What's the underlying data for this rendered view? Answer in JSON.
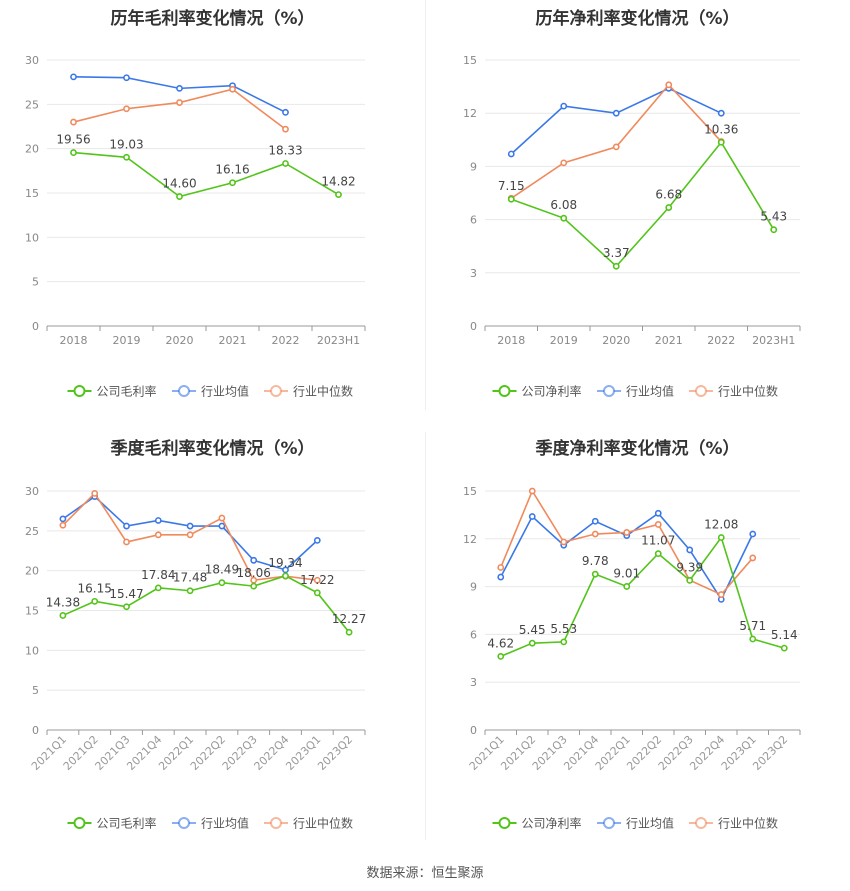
{
  "source": "数据来源：恒生聚源",
  "colors": {
    "company": "#52c41a",
    "avg": "#3b78e7",
    "median": "#f08a5d",
    "grid": "#e8e8e8",
    "axis": "#999999"
  },
  "chart_data": [
    {
      "id": "annual-gross",
      "type": "line",
      "title": "历年毛利率变化情况（%）",
      "categories": [
        "2018",
        "2019",
        "2020",
        "2021",
        "2022",
        "2023H1"
      ],
      "ylim": [
        0,
        30
      ],
      "yticks": [
        0,
        5,
        10,
        15,
        20,
        25,
        30
      ],
      "legend": [
        "公司毛利率",
        "行业均值",
        "行业中位数"
      ],
      "legend_position": "bottom",
      "series": [
        {
          "name": "公司毛利率",
          "key": "company",
          "labels": true,
          "values": [
            19.56,
            19.03,
            14.6,
            16.16,
            18.33,
            14.82
          ],
          "display": [
            "19.56",
            "19.03",
            "14.60",
            "16.16",
            "18.33",
            "14.82"
          ]
        },
        {
          "name": "行业均值",
          "key": "avg",
          "values": [
            28.1,
            28.0,
            26.8,
            27.1,
            24.1,
            null
          ]
        },
        {
          "name": "行业中位数",
          "key": "median",
          "values": [
            23.0,
            24.5,
            25.2,
            26.7,
            22.2,
            null
          ]
        }
      ]
    },
    {
      "id": "annual-net",
      "type": "line",
      "title": "历年净利率变化情况（%）",
      "categories": [
        "2018",
        "2019",
        "2020",
        "2021",
        "2022",
        "2023H1"
      ],
      "ylim": [
        0,
        15
      ],
      "yticks": [
        0,
        3,
        6,
        9,
        12,
        15
      ],
      "legend": [
        "公司净利率",
        "行业均值",
        "行业中位数"
      ],
      "legend_position": "bottom",
      "series": [
        {
          "name": "公司净利率",
          "key": "company",
          "labels": true,
          "values": [
            7.15,
            6.08,
            3.37,
            6.68,
            10.36,
            5.43
          ],
          "display": [
            "7.15",
            "6.08",
            "3.37",
            "6.68",
            "10.36",
            "5.43"
          ]
        },
        {
          "name": "行业均值",
          "key": "avg",
          "values": [
            9.7,
            12.4,
            12.0,
            13.4,
            12.0,
            null
          ]
        },
        {
          "name": "行业中位数",
          "key": "median",
          "values": [
            7.2,
            9.2,
            10.1,
            13.6,
            10.4,
            null
          ]
        }
      ]
    },
    {
      "id": "quarterly-gross",
      "type": "line",
      "title": "季度毛利率变化情况（%）",
      "categories": [
        "2021Q1",
        "2021Q2",
        "2021Q3",
        "2021Q4",
        "2022Q1",
        "2022Q2",
        "2022Q3",
        "2022Q4",
        "2023Q1",
        "2023Q2"
      ],
      "ylim": [
        0,
        30
      ],
      "yticks": [
        0,
        5,
        10,
        15,
        20,
        25,
        30
      ],
      "legend": [
        "公司毛利率",
        "行业均值",
        "行业中位数"
      ],
      "legend_position": "bottom",
      "series": [
        {
          "name": "公司毛利率",
          "key": "company",
          "labels": true,
          "values": [
            14.38,
            16.15,
            15.47,
            17.84,
            17.48,
            18.49,
            18.06,
            19.34,
            17.22,
            12.27
          ],
          "display": [
            "14.38",
            "16.15",
            "15.47",
            "17.84",
            "17.48",
            "18.49",
            "18.06",
            "19.34",
            "17.22",
            "12.27"
          ]
        },
        {
          "name": "行业均值",
          "key": "avg",
          "values": [
            26.5,
            29.3,
            25.6,
            26.3,
            25.6,
            25.6,
            21.3,
            20.1,
            23.8,
            null
          ]
        },
        {
          "name": "行业中位数",
          "key": "median",
          "values": [
            25.7,
            29.7,
            23.6,
            24.5,
            24.5,
            26.6,
            18.8,
            19.3,
            18.8,
            null
          ]
        }
      ]
    },
    {
      "id": "quarterly-net",
      "type": "line",
      "title": "季度净利率变化情况（%）",
      "categories": [
        "2021Q1",
        "2021Q2",
        "2021Q3",
        "2021Q4",
        "2022Q1",
        "2022Q2",
        "2022Q3",
        "2022Q4",
        "2023Q1",
        "2023Q2"
      ],
      "ylim": [
        0,
        15
      ],
      "yticks": [
        0,
        3,
        6,
        9,
        12,
        15
      ],
      "legend": [
        "公司净利率",
        "行业均值",
        "行业中位数"
      ],
      "legend_position": "bottom",
      "series": [
        {
          "name": "公司净利率",
          "key": "company",
          "labels": true,
          "values": [
            4.62,
            5.45,
            5.53,
            9.78,
            9.01,
            11.07,
            9.39,
            12.08,
            5.71,
            5.14
          ],
          "display": [
            "4.62",
            "5.45",
            "5.53",
            "9.78",
            "9.01",
            "11.07",
            "9.39",
            "12.08",
            "5.71",
            "5.14"
          ]
        },
        {
          "name": "行业均值",
          "key": "avg",
          "values": [
            9.6,
            13.4,
            11.6,
            13.1,
            12.2,
            13.6,
            11.3,
            8.2,
            12.3,
            null
          ]
        },
        {
          "name": "行业中位数",
          "key": "median",
          "values": [
            10.2,
            15.0,
            11.8,
            12.3,
            12.4,
            12.9,
            9.4,
            8.5,
            10.8,
            null
          ]
        }
      ]
    }
  ]
}
